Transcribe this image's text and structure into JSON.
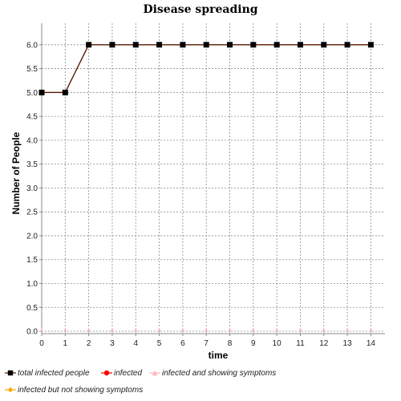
{
  "chart_data": {
    "type": "line",
    "title": "Disease spreading",
    "xlabel": "time",
    "ylabel": "Number of People",
    "x": [
      0,
      1,
      2,
      3,
      4,
      5,
      6,
      7,
      8,
      9,
      10,
      11,
      12,
      13,
      14
    ],
    "xlim": [
      0,
      14.6
    ],
    "ylim": [
      -0.05,
      6.45
    ],
    "xticks": [
      0,
      1,
      2,
      3,
      4,
      5,
      6,
      7,
      8,
      9,
      10,
      11,
      12,
      13,
      14
    ],
    "yticks": [
      "0.0",
      "0.5",
      "1.0",
      "1.5",
      "2.0",
      "2.5",
      "3.0",
      "3.5",
      "4.0",
      "4.5",
      "5.0",
      "5.5",
      "6.0"
    ],
    "grid": true,
    "legend_position": "bottom",
    "series": [
      {
        "name": "total infected people",
        "color": "#000000",
        "line_color": "#5a1a00",
        "marker": "square",
        "values": [
          5,
          5,
          6,
          6,
          6,
          6,
          6,
          6,
          6,
          6,
          6,
          6,
          6,
          6,
          6
        ]
      },
      {
        "name": "infected",
        "color": "#ff0000",
        "marker": "circle",
        "values": [
          0,
          0,
          0,
          0,
          0,
          0,
          0,
          0,
          0,
          0,
          0,
          0,
          0,
          0,
          0
        ]
      },
      {
        "name": "infected and showing symptoms",
        "color": "#ffb6c1",
        "marker": "triangle",
        "values": [
          0,
          0,
          0,
          0,
          0,
          0,
          0,
          0,
          0,
          0,
          0,
          0,
          0,
          0,
          0
        ]
      },
      {
        "name": "infected but not showing symptoms",
        "color": "#ffa500",
        "marker": "diamond",
        "values": [
          0,
          0,
          0,
          0,
          0,
          0,
          0,
          0,
          0,
          0,
          0,
          0,
          0,
          0,
          0
        ]
      }
    ]
  }
}
